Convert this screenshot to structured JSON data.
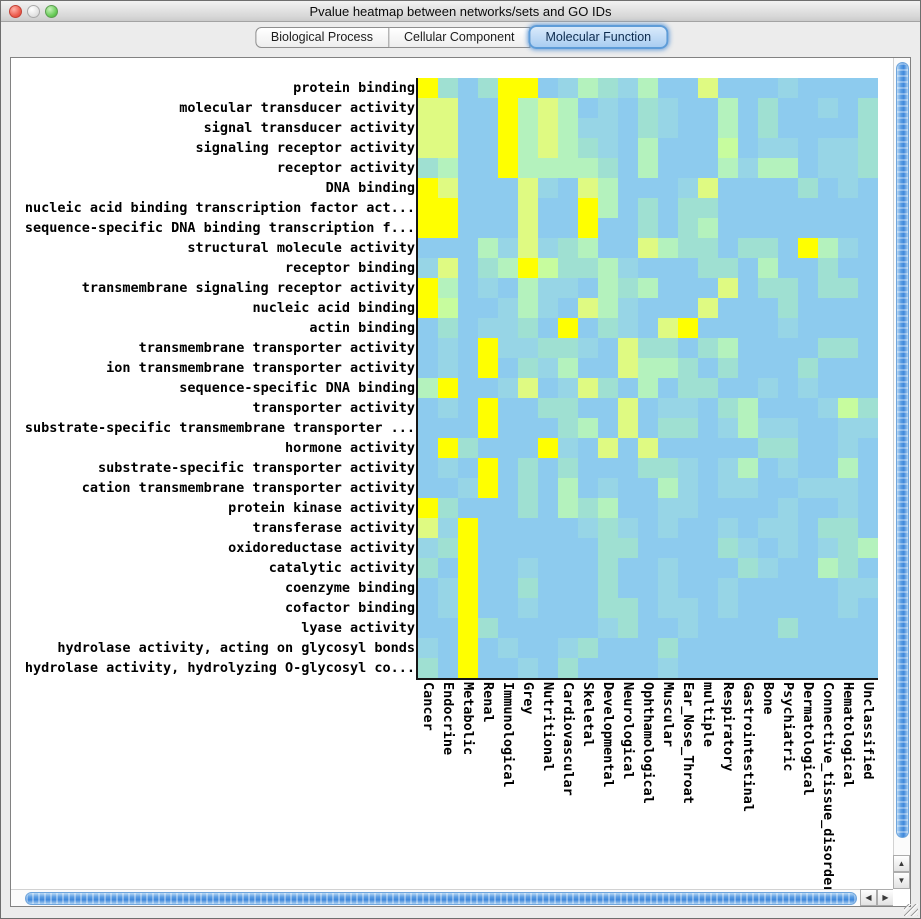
{
  "window": {
    "title": "Pvalue heatmap between networks/sets and GO IDs",
    "traffic_lights": [
      "close",
      "minimize",
      "zoom"
    ]
  },
  "tabs": [
    {
      "label": "Biological Process",
      "selected": false
    },
    {
      "label": "Cellular Component",
      "selected": false
    },
    {
      "label": "Molecular Function",
      "selected": true
    }
  ],
  "icons": {
    "up": "▲",
    "down": "▼",
    "left": "◀",
    "right": "▶"
  },
  "chart_data": {
    "type": "heatmap",
    "xlabel": "",
    "ylabel": "",
    "rows": [
      "protein binding",
      "molecular transducer activity",
      "signal transducer activity",
      "signaling receptor activity",
      "receptor activity",
      "DNA binding",
      "nucleic acid binding transcription factor act...",
      "sequence-specific DNA binding transcription f...",
      "structural molecule activity",
      "receptor binding",
      "transmembrane signaling receptor activity",
      "nucleic acid binding",
      "actin binding",
      "transmembrane transporter activity",
      "ion transmembrane transporter activity",
      "sequence-specific DNA binding",
      "transporter activity",
      "substrate-specific transmembrane transporter ...",
      "hormone activity",
      "substrate-specific transporter activity",
      "cation transmembrane transporter activity",
      "protein kinase activity",
      "transferase activity",
      "oxidoreductase activity",
      "catalytic activity",
      "coenzyme binding",
      "cofactor binding",
      "lyase activity",
      "hydrolase activity, acting on glycosyl bonds",
      "hydrolase activity, hydrolyzing O-glycosyl co..."
    ],
    "columns": [
      "Cancer",
      "Endocrine",
      "Metabolic",
      "Renal",
      "Immunological",
      "Grey",
      "Nutritional",
      "Cardiovascular",
      "Skeletal",
      "Developmental",
      "Neurological",
      "Ophthamological",
      "Muscular",
      "Ear_Nose_Throat",
      "multiple",
      "Respiratory",
      "Gastrointestinal",
      "Bone",
      "Psychiatric",
      "Dermatological",
      "Connective_tissue_disorder",
      "Hematological",
      "Unclassified"
    ],
    "palette": {
      "Y": "#FFFF00",
      "y": "#DFFA82",
      "G": "#C7FC9E",
      "g": "#B4F2BD",
      "t": "#9FE0D2",
      "c": "#97D5E6",
      "b": "#8DCBEE"
    },
    "cells": [
      "Y,t,b,t,Y,Y,b,c,g,t,c,g,b,b,y,b,b,b,c,b,b,b,b",
      "y,y,b,b,Y,g,y,g,b,c,b,t,c,b,b,g,b,t,b,b,c,b,t",
      "y,y,b,b,Y,g,y,g,c,c,b,t,c,b,b,g,b,t,b,b,b,b,t",
      "y,y,b,b,Y,g,y,g,t,c,b,g,b,b,b,G,b,c,c,b,c,c,t",
      "t,g,b,b,Y,g,g,g,g,t,b,g,b,b,b,g,c,g,g,b,c,c,t",
      "Y,y,b,b,b,y,c,b,y,g,b,b,b,c,y,b,b,b,b,t,b,c,b",
      "Y,Y,b,b,b,y,b,b,Y,g,b,t,b,t,t,b,b,b,b,b,b,b,b",
      "Y,Y,b,b,b,y,b,b,Y,b,b,t,b,t,g,b,b,b,b,b,b,b,b",
      "b,b,b,g,c,y,c,t,g,b,b,y,g,t,t,b,t,t,b,Y,g,c,b",
      "c,y,b,t,g,Y,G,t,t,g,c,b,b,b,t,t,b,g,b,b,t,b,b",
      "Y,g,b,c,b,g,c,c,b,g,t,g,b,b,b,y,b,t,t,b,t,t,b",
      "Y,G,b,b,c,g,c,b,y,g,c,b,b,b,y,b,b,b,t,b,b,b,b",
      "b,t,b,c,c,t,b,Y,b,t,c,b,y,Y,b,b,b,b,c,b,b,b,b",
      "b,c,b,Y,c,c,t,t,c,b,y,t,t,b,t,g,b,b,b,b,t,t,b",
      "b,c,b,Y,b,t,c,g,b,b,y,g,g,t,b,t,b,b,b,t,b,b,b",
      "g,Y,b,b,c,y,b,c,y,t,b,g,b,t,t,b,b,c,b,c,b,b,b",
      "b,c,b,Y,b,b,t,t,b,b,y,b,c,c,b,t,g,b,b,b,c,G,t",
      "b,b,b,Y,b,b,b,t,g,b,y,b,t,t,b,c,g,c,c,b,b,c,c",
      "b,Y,t,b,b,b,Y,c,b,y,b,y,b,b,b,b,b,t,t,b,b,c,b",
      "b,c,b,Y,b,t,b,t,b,b,b,t,t,c,b,c,g,b,c,b,b,g,b",
      "b,b,c,Y,b,t,b,g,b,c,b,b,g,c,b,c,c,b,b,c,c,c,b",
      "Y,t,b,b,b,t,b,g,t,g,b,b,c,c,b,b,b,b,c,b,b,c,b",
      "y,c,Y,b,b,b,b,b,c,t,c,b,c,b,b,c,b,c,c,b,t,t,b",
      "c,t,Y,b,b,b,b,b,b,t,t,b,b,b,b,t,c,b,c,b,c,t,g",
      "t,b,Y,b,b,c,b,b,b,t,b,b,c,b,b,b,t,c,b,b,g,t,b",
      "b,c,Y,b,b,t,b,b,b,t,b,b,c,b,b,c,b,b,b,b,b,c,c",
      "b,c,Y,b,b,c,b,b,b,t,t,b,c,c,b,c,b,b,b,b,b,c,b",
      "b,b,Y,t,b,b,b,b,b,c,t,b,b,c,b,b,b,b,t,b,b,b,b",
      "c,b,Y,b,c,b,b,c,t,b,b,b,t,b,b,b,b,b,b,b,b,b,b",
      "t,b,Y,b,b,c,b,t,b,b,b,b,c,b,b,b,b,b,b,b,b,b,b"
    ]
  }
}
